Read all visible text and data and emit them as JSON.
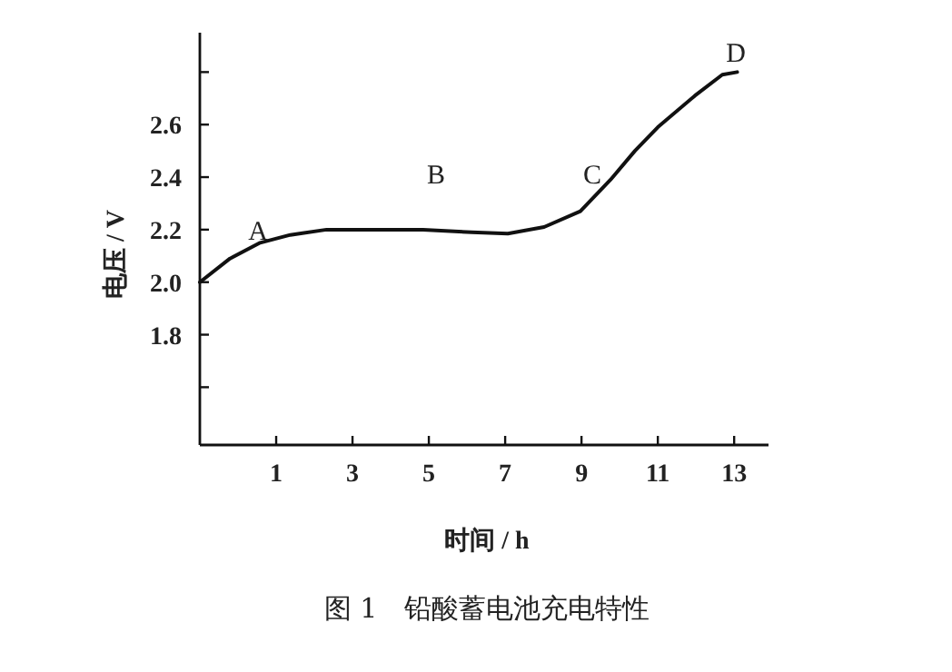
{
  "chart_data": {
    "type": "line",
    "xlabel": "时间 / h",
    "ylabel": "电压 / V",
    "x": [
      -1,
      -0.21,
      0.58,
      1.37,
      2.32,
      3.27,
      4.85,
      6.12,
      7.07,
      8.02,
      8.97,
      9.76,
      10.4,
      11.0,
      11.97,
      12.69,
      13.08
    ],
    "series": [
      {
        "color": "#111111",
        "values": [
          2.0,
          2.09,
          2.15,
          2.18,
          2.2,
          2.2,
          2.2,
          2.19,
          2.185,
          2.21,
          2.27,
          2.39,
          2.5,
          2.59,
          2.71,
          2.79,
          2.8
        ]
      }
    ],
    "xlim": [
      -1,
      13.9
    ],
    "ylim": [
      1.38,
      2.95
    ],
    "xticks": [
      1,
      3,
      5,
      7,
      9,
      11,
      13
    ],
    "yticks": [
      {
        "value": 1.6,
        "label": null
      },
      {
        "value": 1.8,
        "label": "1.8"
      },
      {
        "value": 2.0,
        "label": "2.0"
      },
      {
        "value": 2.2,
        "label": "2.2"
      },
      {
        "value": 2.4,
        "label": "2.4"
      },
      {
        "value": 2.6,
        "label": "2.6"
      },
      {
        "value": 2.8,
        "label": null
      }
    ],
    "grid": false,
    "marker": "none",
    "line_style": "solid",
    "annotations": [
      "A",
      "B",
      "C",
      "D",
      "图 1　铅酸蓄电池充电特性"
    ]
  }
}
